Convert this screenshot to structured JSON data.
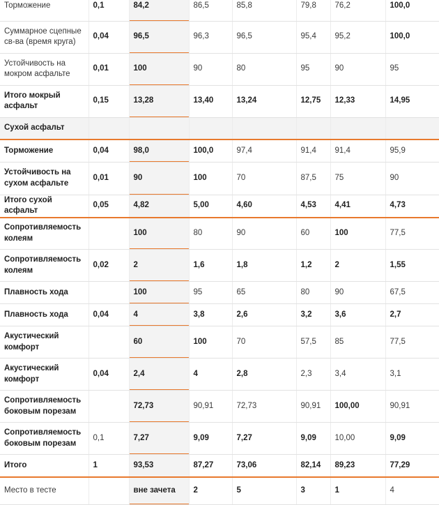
{
  "table": {
    "accent_color": "#e8792d",
    "rows": [
      {
        "id": "braking-wet",
        "cells": [
          {
            "t": "Торможение",
            "b": false
          },
          {
            "t": "0,1",
            "b": true
          },
          {
            "t": "84,2",
            "b": true
          },
          {
            "t": "86,5",
            "b": false
          },
          {
            "t": "85,8",
            "b": false
          },
          {
            "t": "79,8",
            "b": false
          },
          {
            "t": "76,2",
            "b": false
          },
          {
            "t": "100,0",
            "b": true
          }
        ]
      },
      {
        "id": "total-grip-lap-time",
        "cells": [
          {
            "t": "Суммарное сцепные св-ва (время круга)",
            "b": false
          },
          {
            "t": "0,04",
            "b": true
          },
          {
            "t": "96,5",
            "b": true
          },
          {
            "t": "96,3",
            "b": false
          },
          {
            "t": "96,5",
            "b": false
          },
          {
            "t": "95,4",
            "b": false
          },
          {
            "t": "95,2",
            "b": false
          },
          {
            "t": "100,0",
            "b": true
          }
        ]
      },
      {
        "id": "stability-wet",
        "cells": [
          {
            "t": "Устойчивость на мокром асфальте",
            "b": false
          },
          {
            "t": "0,01",
            "b": true
          },
          {
            "t": "100",
            "b": true
          },
          {
            "t": "90",
            "b": false
          },
          {
            "t": "80",
            "b": false
          },
          {
            "t": "95",
            "b": false
          },
          {
            "t": "90",
            "b": false
          },
          {
            "t": "95",
            "b": false
          }
        ]
      },
      {
        "id": "total-wet",
        "cells": [
          {
            "t": "Итого мокрый асфальт",
            "b": true
          },
          {
            "t": "0,15",
            "b": true
          },
          {
            "t": "13,28",
            "b": true
          },
          {
            "t": "13,40",
            "b": true
          },
          {
            "t": "13,24",
            "b": true
          },
          {
            "t": "12,75",
            "b": true
          },
          {
            "t": "12,33",
            "b": true
          },
          {
            "t": "14,95",
            "b": true
          }
        ]
      },
      {
        "id": "section-dry",
        "section": true,
        "cells": [
          {
            "t": "Сухой асфальт",
            "b": true
          },
          {
            "t": "",
            "b": false
          },
          {
            "t": "",
            "b": false
          },
          {
            "t": "",
            "b": false
          },
          {
            "t": "",
            "b": false
          },
          {
            "t": "",
            "b": false
          },
          {
            "t": "",
            "b": false
          },
          {
            "t": "",
            "b": false
          }
        ]
      },
      {
        "id": "braking-dry",
        "cells": [
          {
            "t": "Торможение",
            "b": true
          },
          {
            "t": "0,04",
            "b": true
          },
          {
            "t": "98,0",
            "b": true
          },
          {
            "t": "100,0",
            "b": true
          },
          {
            "t": "97,4",
            "b": false
          },
          {
            "t": "91,4",
            "b": false
          },
          {
            "t": "91,4",
            "b": false
          },
          {
            "t": "95,9",
            "b": false
          }
        ]
      },
      {
        "id": "stability-dry",
        "cells": [
          {
            "t": "Устойчивость на сухом асфальте",
            "b": true
          },
          {
            "t": "0,01",
            "b": true
          },
          {
            "t": "90",
            "b": true
          },
          {
            "t": "100",
            "b": true
          },
          {
            "t": "70",
            "b": false
          },
          {
            "t": "87,5",
            "b": false
          },
          {
            "t": "75",
            "b": false
          },
          {
            "t": "90",
            "b": false
          }
        ]
      },
      {
        "id": "total-dry",
        "cells": [
          {
            "t": "Итого сухой асфальт",
            "b": true
          },
          {
            "t": "0,05",
            "b": true
          },
          {
            "t": "4,82",
            "b": true
          },
          {
            "t": "5,00",
            "b": true
          },
          {
            "t": "4,60",
            "b": true
          },
          {
            "t": "4,53",
            "b": true
          },
          {
            "t": "4,41",
            "b": true
          },
          {
            "t": "4,73",
            "b": true
          }
        ]
      },
      {
        "id": "rut-resistance-raw",
        "cells": [
          {
            "t": "Сопротивляемость колеям",
            "b": true
          },
          {
            "t": "",
            "b": false
          },
          {
            "t": "100",
            "b": true
          },
          {
            "t": "80",
            "b": false
          },
          {
            "t": "90",
            "b": false
          },
          {
            "t": "60",
            "b": false
          },
          {
            "t": "100",
            "b": true
          },
          {
            "t": "77,5",
            "b": false
          }
        ]
      },
      {
        "id": "rut-resistance-weighted",
        "cells": [
          {
            "t": "Сопротивляемость колеям",
            "b": true
          },
          {
            "t": "0,02",
            "b": true
          },
          {
            "t": "2",
            "b": true
          },
          {
            "t": "1,6",
            "b": true
          },
          {
            "t": "1,8",
            "b": true
          },
          {
            "t": "1,2",
            "b": true
          },
          {
            "t": "2",
            "b": true
          },
          {
            "t": "1,55",
            "b": true
          }
        ]
      },
      {
        "id": "ride-smoothness-raw",
        "cells": [
          {
            "t": "Плавность хода",
            "b": true
          },
          {
            "t": "",
            "b": false
          },
          {
            "t": "100",
            "b": true
          },
          {
            "t": "95",
            "b": false
          },
          {
            "t": "65",
            "b": false
          },
          {
            "t": "80",
            "b": false
          },
          {
            "t": "90",
            "b": false
          },
          {
            "t": "67,5",
            "b": false
          }
        ]
      },
      {
        "id": "ride-smoothness-weighted",
        "cells": [
          {
            "t": "Плавность хода",
            "b": true
          },
          {
            "t": "0,04",
            "b": true
          },
          {
            "t": "4",
            "b": true
          },
          {
            "t": "3,8",
            "b": true
          },
          {
            "t": "2,6",
            "b": true
          },
          {
            "t": "3,2",
            "b": true
          },
          {
            "t": "3,6",
            "b": true
          },
          {
            "t": "2,7",
            "b": true
          }
        ]
      },
      {
        "id": "acoustic-comfort-raw",
        "cells": [
          {
            "t": "Акустический комфорт",
            "b": true
          },
          {
            "t": "",
            "b": false
          },
          {
            "t": "60",
            "b": true
          },
          {
            "t": "100",
            "b": true
          },
          {
            "t": "70",
            "b": false
          },
          {
            "t": "57,5",
            "b": false
          },
          {
            "t": "85",
            "b": false
          },
          {
            "t": "77,5",
            "b": false
          }
        ]
      },
      {
        "id": "acoustic-comfort-weighted",
        "cells": [
          {
            "t": "Акустический комфорт",
            "b": true
          },
          {
            "t": "0,04",
            "b": true
          },
          {
            "t": "2,4",
            "b": true
          },
          {
            "t": "4",
            "b": true
          },
          {
            "t": "2,8",
            "b": true
          },
          {
            "t": "2,3",
            "b": false
          },
          {
            "t": "3,4",
            "b": false
          },
          {
            "t": "3,1",
            "b": false
          }
        ]
      },
      {
        "id": "side-cut-resistance-raw",
        "cells": [
          {
            "t": "Сопротивляемость боковым порезам",
            "b": true
          },
          {
            "t": "",
            "b": false
          },
          {
            "t": "72,73",
            "b": true
          },
          {
            "t": "90,91",
            "b": false
          },
          {
            "t": "72,73",
            "b": false
          },
          {
            "t": "90,91",
            "b": false
          },
          {
            "t": "100,00",
            "b": true
          },
          {
            "t": "90,91",
            "b": false
          }
        ]
      },
      {
        "id": "side-cut-resistance-weighted",
        "cells": [
          {
            "t": "Сопротивляемость боковым порезам",
            "b": true
          },
          {
            "t": "0,1",
            "b": false
          },
          {
            "t": "7,27",
            "b": true
          },
          {
            "t": "9,09",
            "b": true
          },
          {
            "t": "7,27",
            "b": true
          },
          {
            "t": "9,09",
            "b": true
          },
          {
            "t": "10,00",
            "b": false
          },
          {
            "t": "9,09",
            "b": true
          }
        ]
      },
      {
        "id": "grand-total",
        "cells": [
          {
            "t": "Итого",
            "b": true
          },
          {
            "t": "1",
            "b": true
          },
          {
            "t": "93,53",
            "b": true
          },
          {
            "t": "87,27",
            "b": true
          },
          {
            "t": "73,06",
            "b": true
          },
          {
            "t": "82,14",
            "b": true
          },
          {
            "t": "89,23",
            "b": true
          },
          {
            "t": "77,29",
            "b": true
          }
        ]
      },
      {
        "id": "test-place",
        "cells": [
          {
            "t": "Место в тесте",
            "b": false
          },
          {
            "t": "",
            "b": false
          },
          {
            "t": "вне зачета",
            "b": true
          },
          {
            "t": "2",
            "b": true
          },
          {
            "t": "5",
            "b": true
          },
          {
            "t": "3",
            "b": true
          },
          {
            "t": "1",
            "b": true
          },
          {
            "t": "4",
            "b": false
          }
        ]
      }
    ]
  }
}
